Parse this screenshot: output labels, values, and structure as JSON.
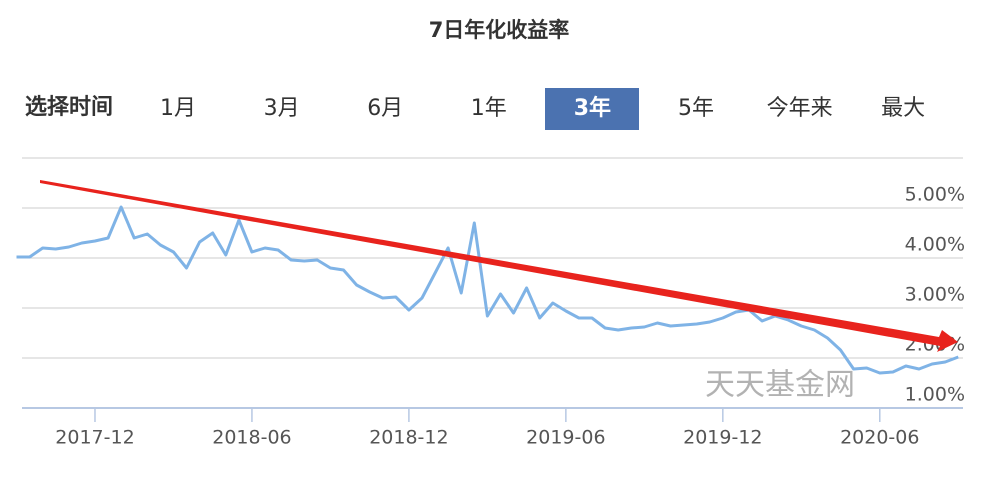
{
  "controls": {
    "label": "选择时间",
    "options": [
      "1月",
      "3月",
      "6月",
      "1年",
      "3年",
      "5年",
      "今年来",
      "最大"
    ],
    "selected": 4
  },
  "chart_data": {
    "type": "line",
    "title": "7日年化收益率",
    "watermark": "天天基金网",
    "categories": [
      null,
      null,
      null,
      null,
      null,
      null,
      "2017-12",
      null,
      null,
      null,
      null,
      null,
      null,
      null,
      null,
      null,
      null,
      null,
      "2018-06",
      null,
      null,
      null,
      null,
      null,
      null,
      null,
      null,
      null,
      null,
      null,
      "2018-12",
      null,
      null,
      null,
      null,
      null,
      null,
      null,
      null,
      null,
      null,
      null,
      "2019-06",
      null,
      null,
      null,
      null,
      null,
      null,
      null,
      null,
      null,
      null,
      null,
      "2019-12",
      null,
      null,
      null,
      null,
      null,
      null,
      null,
      null,
      null,
      null,
      null,
      "2020-06",
      null,
      null,
      null,
      null,
      null,
      null
    ],
    "values": [
      4.02,
      4.02,
      4.2,
      4.18,
      4.22,
      4.3,
      4.34,
      4.4,
      5.02,
      4.4,
      4.48,
      4.26,
      4.12,
      3.8,
      4.32,
      4.5,
      4.06,
      4.76,
      4.12,
      4.2,
      4.16,
      3.96,
      3.94,
      3.96,
      3.8,
      3.76,
      3.46,
      3.32,
      3.2,
      3.22,
      2.96,
      3.2,
      3.7,
      4.2,
      3.3,
      4.7,
      2.84,
      3.28,
      2.9,
      3.4,
      2.8,
      3.1,
      2.94,
      2.8,
      2.8,
      2.6,
      2.56,
      2.6,
      2.62,
      2.7,
      2.64,
      2.66,
      2.68,
      2.72,
      2.8,
      2.92,
      2.96,
      2.74,
      2.84,
      2.76,
      2.64,
      2.56,
      2.4,
      2.16,
      1.78,
      1.8,
      1.7,
      1.72,
      1.84,
      1.78,
      1.88,
      1.92,
      2.02
    ],
    "color": "#7fb3e6",
    "ylim": [
      1,
      6
    ],
    "yticks": [
      {
        "value": 1,
        "label": "1.00%"
      },
      {
        "value": 2,
        "label": "2.00%"
      },
      {
        "value": 3,
        "label": "3.00%"
      },
      {
        "value": 4,
        "label": "4.00%"
      },
      {
        "value": 5,
        "label": "5.00%"
      }
    ],
    "grid": true
  }
}
